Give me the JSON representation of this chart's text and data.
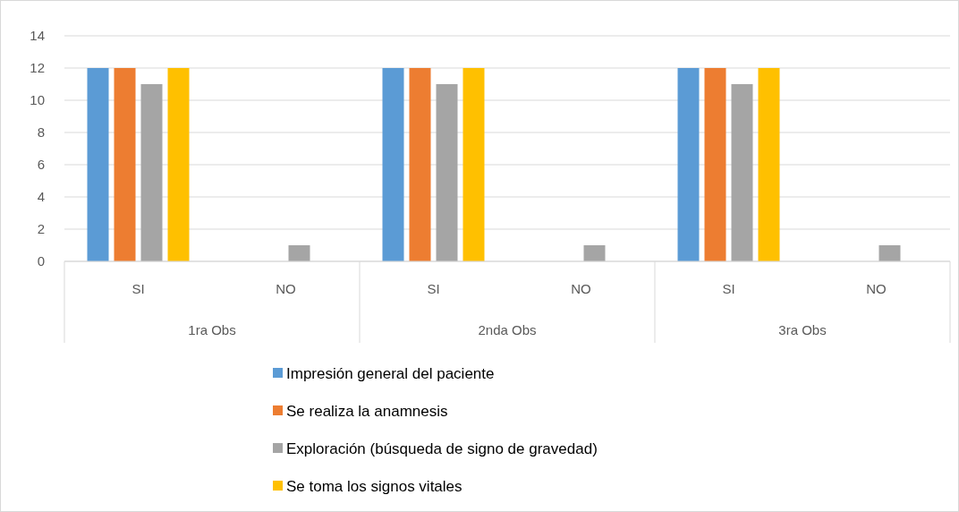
{
  "chart_data": {
    "type": "bar",
    "categories": [
      "SI",
      "NO",
      "SI",
      "NO",
      "SI",
      "NO"
    ],
    "series": [
      {
        "name": "Impresión general del paciente",
        "color": "#5b9bd5",
        "values": [
          12,
          0,
          12,
          0,
          12,
          0
        ]
      },
      {
        "name": "Se realiza la anamnesis",
        "color": "#ed7d31",
        "values": [
          12,
          0,
          12,
          0,
          12,
          0
        ]
      },
      {
        "name": "Exploración (búsqueda de signo de gravedad)",
        "color": "#a5a5a5",
        "values": [
          11,
          1,
          11,
          1,
          11,
          1
        ]
      },
      {
        "name": "Se toma los signos vitales",
        "color": "#ffc000",
        "values": [
          12,
          0,
          12,
          0,
          12,
          0
        ]
      }
    ],
    "annotations": [
      "1ra Obs",
      "2nda Obs",
      "3ra Obs"
    ],
    "ylim": [
      0,
      14
    ],
    "yticks": [
      0,
      2,
      4,
      6,
      8,
      10,
      12,
      14
    ],
    "grid": "y",
    "legend": "bottom"
  }
}
